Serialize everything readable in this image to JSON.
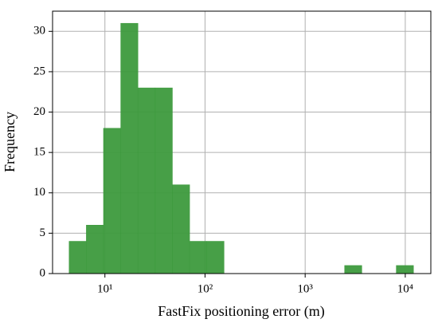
{
  "chart_data": {
    "type": "histogram",
    "xlabel": "FastFix positioning error (m)",
    "ylabel": "Frequency",
    "bins": [
      4.39,
      6.52,
      9.68,
      14.39,
      21.38,
      31.77,
      47.21,
      70.15,
      104.2,
      154.9,
      230.1,
      342.0,
      508.2,
      755.1,
      1122,
      1667,
      2477,
      3681,
      5470,
      8128,
      12078
    ],
    "values": [
      4,
      6,
      18,
      31,
      23,
      23,
      11,
      4,
      4,
      0,
      0,
      0,
      0,
      0,
      0,
      0,
      1,
      0,
      0,
      1
    ],
    "color": "#3d9a3d",
    "xscale": "log",
    "xlim": [
      3,
      18000
    ],
    "xticks": [
      {
        "value": 10,
        "label": "10¹"
      },
      {
        "value": 100,
        "label": "10²"
      },
      {
        "value": 1000,
        "label": "10³"
      },
      {
        "value": 10000,
        "label": "10⁴"
      }
    ],
    "ylim": [
      0,
      32.5
    ],
    "yticks": [
      0,
      5,
      10,
      15,
      20,
      25,
      30
    ],
    "grid": true
  }
}
